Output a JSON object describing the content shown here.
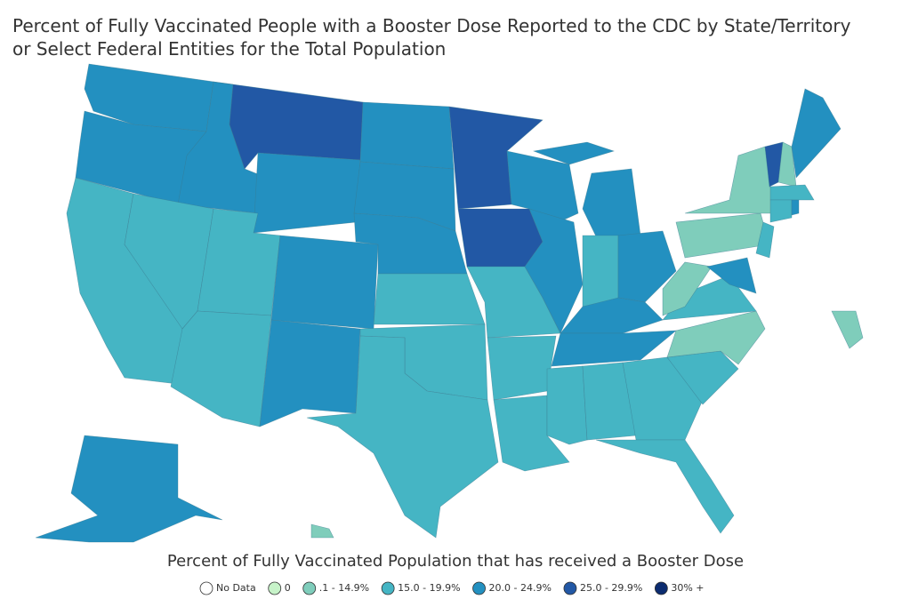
{
  "title": "Percent of Fully Vaccinated People with a Booster Dose Reported to the CDC by State/Territory or Select Federal Entities for the Total Population",
  "title_lines": [
    "Percent of Fully Vaccinated People with a Booster Dose Reported to the CDC by State/Territory",
    "or Select Federal Entities for the Total Population"
  ],
  "legend": {
    "title": "Percent of Fully Vaccinated Population that has received a Booster Dose",
    "items": [
      {
        "label": "No Data",
        "color": "#ffffff"
      },
      {
        "label": "0",
        "color": "#c7f3c9"
      },
      {
        "label": ".1 - 14.9%",
        "color": "#7fcdbb"
      },
      {
        "label": "15.0 - 19.9%",
        "color": "#45b5c4"
      },
      {
        "label": "20.0 - 24.9%",
        "color": "#2390c0"
      },
      {
        "label": "25.0 - 29.9%",
        "color": "#2258a5"
      },
      {
        "label": "30% +",
        "color": "#0c2c70"
      }
    ]
  }
}
